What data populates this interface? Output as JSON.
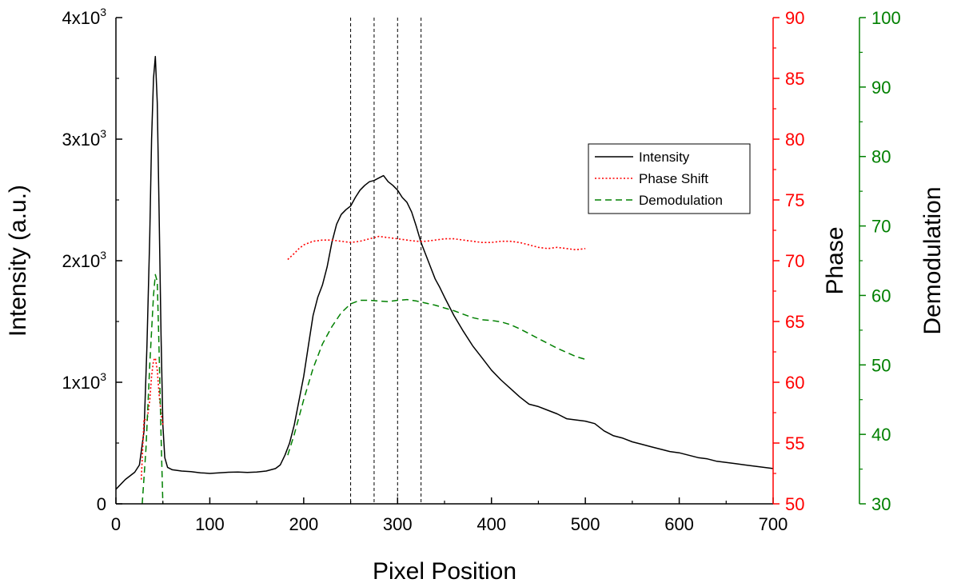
{
  "chart_data": {
    "type": "line",
    "xlabel": "Pixel Position",
    "xlim": [
      0,
      700
    ],
    "xticks": [
      0,
      100,
      200,
      300,
      400,
      500,
      600,
      700
    ],
    "axes": {
      "left": {
        "label": "Intensity (a.u.)",
        "range": [
          0,
          4000
        ],
        "ticks": [
          {
            "value": 0,
            "mantissa": "0",
            "exponent": ""
          },
          {
            "value": 1000,
            "mantissa": "1x10",
            "exponent": "3"
          },
          {
            "value": 2000,
            "mantissa": "2x10",
            "exponent": "3"
          },
          {
            "value": 3000,
            "mantissa": "3x10",
            "exponent": "3"
          },
          {
            "value": 4000,
            "mantissa": "4x10",
            "exponent": "3"
          }
        ],
        "color": "#000000"
      },
      "right1": {
        "label": "Phase",
        "range": [
          50,
          90
        ],
        "ticks": [
          50,
          55,
          60,
          65,
          70,
          75,
          80,
          85,
          90
        ],
        "color": "#ff0000"
      },
      "right2": {
        "label": "Demodulation",
        "range": [
          30,
          100
        ],
        "ticks": [
          30,
          40,
          50,
          60,
          70,
          80,
          90,
          100
        ],
        "color": "#008000"
      }
    },
    "vlines": [
      250,
      275,
      300,
      325
    ],
    "legend": {
      "placement": "top-right"
    },
    "series": [
      {
        "name": "Intensity",
        "axis": "left",
        "style": "solid",
        "color": "#000000",
        "x": [
          0,
          10,
          20,
          25,
          30,
          33,
          36,
          38,
          40,
          42,
          44,
          46,
          48,
          50,
          52,
          55,
          60,
          70,
          80,
          90,
          100,
          110,
          120,
          130,
          140,
          150,
          160,
          170,
          175,
          180,
          185,
          190,
          195,
          200,
          205,
          210,
          215,
          220,
          225,
          230,
          235,
          240,
          245,
          250,
          255,
          260,
          265,
          270,
          275,
          280,
          285,
          290,
          295,
          300,
          305,
          310,
          315,
          320,
          325,
          330,
          335,
          340,
          345,
          350,
          360,
          370,
          380,
          390,
          400,
          410,
          420,
          430,
          440,
          450,
          460,
          470,
          480,
          490,
          500,
          510,
          520,
          530,
          540,
          550,
          560,
          570,
          580,
          590,
          600,
          610,
          620,
          630,
          640,
          650,
          660,
          670,
          680,
          690,
          700
        ],
        "y": [
          120,
          200,
          260,
          320,
          600,
          1300,
          2200,
          3000,
          3500,
          3680,
          3300,
          2400,
          1400,
          650,
          380,
          300,
          280,
          270,
          265,
          255,
          250,
          255,
          260,
          262,
          258,
          262,
          270,
          290,
          320,
          400,
          500,
          650,
          850,
          1050,
          1300,
          1550,
          1700,
          1800,
          1950,
          2150,
          2300,
          2380,
          2420,
          2450,
          2520,
          2580,
          2620,
          2650,
          2660,
          2680,
          2700,
          2650,
          2620,
          2580,
          2520,
          2480,
          2400,
          2280,
          2150,
          2050,
          1950,
          1850,
          1780,
          1700,
          1550,
          1420,
          1300,
          1200,
          1100,
          1020,
          950,
          880,
          820,
          800,
          770,
          740,
          700,
          690,
          680,
          660,
          600,
          560,
          540,
          510,
          490,
          470,
          450,
          430,
          420,
          400,
          380,
          370,
          350,
          340,
          330,
          320,
          310,
          300,
          290
        ]
      },
      {
        "name": "Phase Shift",
        "axis": "right1",
        "style": "dotted",
        "color": "#ff0000",
        "segments": [
          {
            "x": [
              27,
              30,
              33,
              36,
              38,
              40,
              42,
              44,
              46,
              48,
              50
            ],
            "y": [
              52.0,
              57.0,
              56.8,
              58.5,
              60.5,
              61.8,
              62.0,
              61.0,
              59.0,
              57.5,
              56.5
            ]
          },
          {
            "x": [
              183,
              190,
              195,
              200,
              210,
              220,
              230,
              240,
              250,
              260,
              270,
              280,
              290,
              300,
              310,
              320,
              330,
              340,
              350,
              360,
              370,
              380,
              390,
              400,
              410,
              420,
              430,
              440,
              450,
              460,
              470,
              480,
              490,
              500
            ],
            "y": [
              70.1,
              70.6,
              71.0,
              71.3,
              71.6,
              71.7,
              71.7,
              71.6,
              71.5,
              71.6,
              71.8,
              72.0,
              71.9,
              71.8,
              71.7,
              71.6,
              71.6,
              71.7,
              71.8,
              71.8,
              71.7,
              71.6,
              71.5,
              71.5,
              71.6,
              71.6,
              71.5,
              71.3,
              71.1,
              71.0,
              71.1,
              71.0,
              70.9,
              71.0
            ]
          }
        ]
      },
      {
        "name": "Demodulation",
        "axis": "right2",
        "style": "dashed",
        "color": "#008000",
        "segments": [
          {
            "x": [
              28,
              32,
              36,
              40,
              42,
              44,
              46,
              48,
              50
            ],
            "y": [
              30.0,
              38.0,
              50.0,
              60.0,
              63.0,
              62.0,
              52.0,
              40.0,
              30.0
            ]
          },
          {
            "x": [
              183,
              190,
              200,
              210,
              220,
              230,
              240,
              250,
              260,
              270,
              280,
              290,
              300,
              310,
              320,
              330,
              340,
              350,
              360,
              370,
              380,
              390,
              400,
              410,
              420,
              430,
              440,
              450,
              460,
              470,
              480,
              490,
              500
            ],
            "y": [
              37.0,
              40.0,
              45.0,
              49.5,
              53.0,
              55.5,
              57.5,
              58.8,
              59.3,
              59.3,
              59.2,
              59.1,
              59.3,
              59.4,
              59.2,
              58.9,
              58.6,
              58.2,
              57.8,
              57.3,
              56.8,
              56.5,
              56.4,
              56.2,
              55.8,
              55.2,
              54.5,
              53.8,
              53.1,
              52.4,
              51.8,
              51.2,
              50.8
            ]
          }
        ]
      }
    ]
  }
}
